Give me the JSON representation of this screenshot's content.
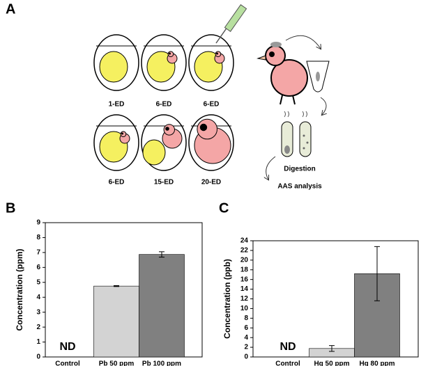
{
  "panels": [
    "A",
    "B",
    "C"
  ],
  "diagram": {
    "eggs": [
      "1-ED",
      "6-ED",
      "6-ED",
      "6-ED",
      "15-ED",
      "20-ED"
    ],
    "steps": [
      "Digestion",
      "AAS analysis"
    ]
  },
  "chart_data": [
    {
      "type": "bar",
      "ylabel": "Concentration (ppm)",
      "categories": [
        "Control",
        "Pb 50 ppm",
        "Pb 100 ppm"
      ],
      "values": [
        null,
        4.75,
        6.87
      ],
      "errors": [
        null,
        0.03,
        0.18
      ],
      "colors": [
        "#d3d3d3",
        "#d3d3d3",
        "#808080"
      ],
      "annotation": "ND",
      "ylim": [
        0,
        9
      ],
      "yticks": [
        0,
        1,
        2,
        3,
        4,
        5,
        6,
        7,
        8,
        9
      ]
    },
    {
      "type": "bar",
      "ylabel": "Concentration (ppb)",
      "categories": [
        "Control",
        "Hg 50 ppm",
        "Hg 80 ppm"
      ],
      "values": [
        null,
        1.75,
        17.2
      ],
      "errors": [
        null,
        0.6,
        5.6
      ],
      "colors": [
        "#d3d3d3",
        "#d3d3d3",
        "#808080"
      ],
      "annotation": "ND",
      "ylim": [
        0,
        24
      ],
      "yticks": [
        0,
        2,
        4,
        6,
        8,
        10,
        12,
        14,
        16,
        18,
        20,
        22,
        24
      ]
    }
  ]
}
